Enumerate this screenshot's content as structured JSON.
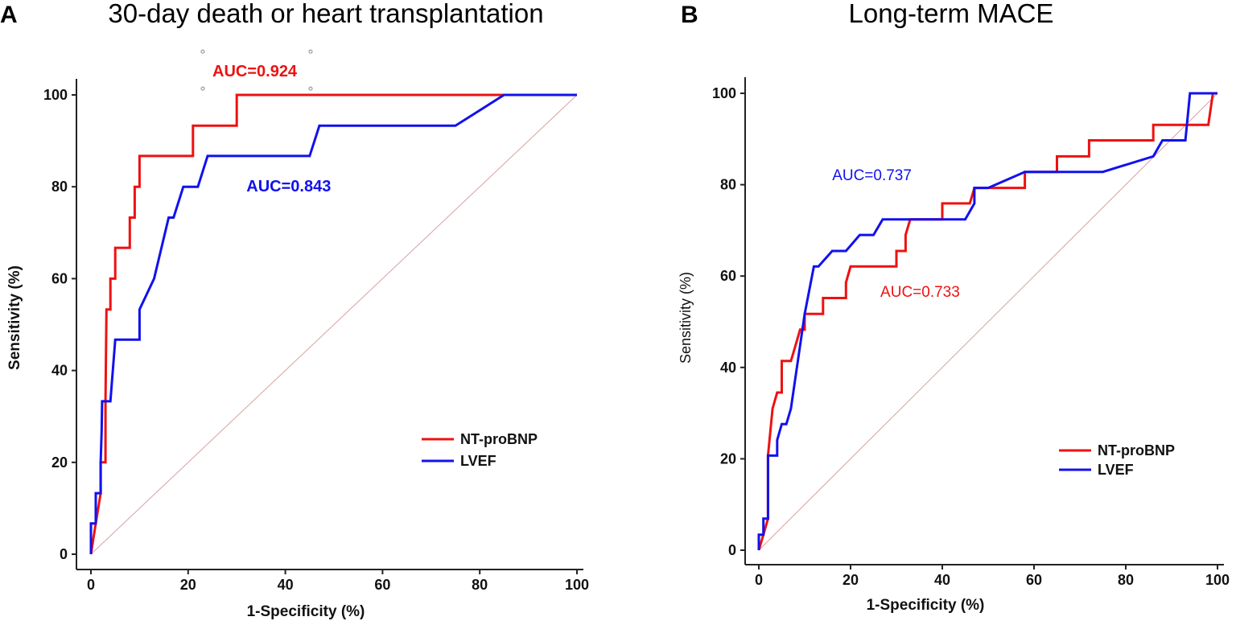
{
  "chart_data": [
    {
      "panel": "A",
      "type": "line",
      "title": "30-day death or heart transplantation",
      "xlabel": "1-Specificity (%)",
      "ylabel": "Sensitivity (%)",
      "xlim": [
        0,
        100
      ],
      "ylim": [
        0,
        100
      ],
      "xticks": [
        0,
        20,
        40,
        60,
        80,
        100
      ],
      "yticks": [
        0,
        20,
        40,
        60,
        80,
        100
      ],
      "grid": false,
      "legend": "lower-right",
      "series": [
        {
          "name": "NT-proBNP",
          "color": "#ee1111",
          "auc_label": "AUC=0.924",
          "auc_pos": [
            25,
            104
          ],
          "points": [
            [
              0,
              0
            ],
            [
              1,
              6.7
            ],
            [
              2,
              13.3
            ],
            [
              2,
              20
            ],
            [
              3,
              20
            ],
            [
              3,
              33.3
            ],
            [
              3.2,
              53.3
            ],
            [
              4,
              53.3
            ],
            [
              4,
              60
            ],
            [
              5,
              60
            ],
            [
              5,
              66.7
            ],
            [
              8,
              66.7
            ],
            [
              8,
              73.3
            ],
            [
              9,
              73.3
            ],
            [
              9,
              80
            ],
            [
              10,
              80
            ],
            [
              10,
              86.7
            ],
            [
              21,
              86.7
            ],
            [
              21,
              93.3
            ],
            [
              30,
              93.3
            ],
            [
              30,
              100
            ],
            [
              100,
              100
            ]
          ]
        },
        {
          "name": "LVEF",
          "color": "#1111ee",
          "auc_label": "AUC=0.843",
          "auc_pos": [
            32,
            79
          ],
          "points": [
            [
              0,
              0
            ],
            [
              0,
              6.7
            ],
            [
              1,
              6.7
            ],
            [
              1,
              13.3
            ],
            [
              2,
              13.3
            ],
            [
              2,
              20
            ],
            [
              2.2,
              26.7
            ],
            [
              2.3,
              33.3
            ],
            [
              4,
              33.3
            ],
            [
              4.5,
              40
            ],
            [
              5,
              46.7
            ],
            [
              10,
              46.7
            ],
            [
              10,
              53.3
            ],
            [
              13,
              60
            ],
            [
              16,
              73.3
            ],
            [
              17,
              73.3
            ],
            [
              19,
              80
            ],
            [
              22,
              80
            ],
            [
              24,
              86.7
            ],
            [
              45,
              86.7
            ],
            [
              47,
              93.3
            ],
            [
              75,
              93.3
            ],
            [
              85,
              100
            ],
            [
              100,
              100
            ]
          ]
        }
      ]
    },
    {
      "panel": "B",
      "type": "line",
      "title": "Long-term MACE",
      "xlabel": "1-Specificity (%)",
      "ylabel": "Sensitivity (%)",
      "xlim": [
        0,
        100
      ],
      "ylim": [
        0,
        100
      ],
      "xticks": [
        0,
        20,
        40,
        60,
        80,
        100
      ],
      "yticks": [
        0,
        20,
        40,
        60,
        80,
        100
      ],
      "grid": false,
      "legend": "lower-right",
      "series": [
        {
          "name": "NT-proBNP",
          "color": "#ee1111",
          "auc_label": "AUC=0.733",
          "auc_pos": [
            26.5,
            55.5
          ],
          "points": [
            [
              0,
              0
            ],
            [
              1,
              3.4
            ],
            [
              2,
              6.9
            ],
            [
              2,
              20.7
            ],
            [
              3,
              31
            ],
            [
              4,
              34.5
            ],
            [
              5,
              34.5
            ],
            [
              5,
              41.4
            ],
            [
              7,
              41.4
            ],
            [
              8,
              44.8
            ],
            [
              9,
              48.3
            ],
            [
              10,
              48.3
            ],
            [
              10,
              51.7
            ],
            [
              14,
              51.7
            ],
            [
              14,
              55.2
            ],
            [
              19,
              55.2
            ],
            [
              19,
              58.6
            ],
            [
              20,
              62.1
            ],
            [
              30,
              62.1
            ],
            [
              30,
              65.5
            ],
            [
              32,
              65.5
            ],
            [
              32,
              69
            ],
            [
              33,
              72.4
            ],
            [
              40,
              72.4
            ],
            [
              40,
              75.9
            ],
            [
              46,
              75.9
            ],
            [
              47,
              79.3
            ],
            [
              58,
              79.3
            ],
            [
              58,
              82.8
            ],
            [
              65,
              82.8
            ],
            [
              65,
              86.2
            ],
            [
              72,
              86.2
            ],
            [
              72,
              89.7
            ],
            [
              86,
              89.7
            ],
            [
              86,
              93.1
            ],
            [
              98,
              93.1
            ],
            [
              99,
              100
            ],
            [
              100,
              100
            ]
          ]
        },
        {
          "name": "LVEF",
          "color": "#1111ee",
          "auc_label": "AUC=0.737",
          "auc_pos": [
            16,
            81
          ],
          "points": [
            [
              0,
              0
            ],
            [
              0,
              3.4
            ],
            [
              1,
              3.4
            ],
            [
              1,
              6.9
            ],
            [
              2,
              6.9
            ],
            [
              2,
              20.7
            ],
            [
              4,
              20.7
            ],
            [
              4,
              24.1
            ],
            [
              5,
              27.6
            ],
            [
              6,
              27.6
            ],
            [
              7,
              31
            ],
            [
              8,
              37.9
            ],
            [
              9,
              44.8
            ],
            [
              10,
              51.7
            ],
            [
              12,
              62.1
            ],
            [
              13,
              62.1
            ],
            [
              16,
              65.5
            ],
            [
              19,
              65.5
            ],
            [
              22,
              69
            ],
            [
              25,
              69
            ],
            [
              27,
              72.4
            ],
            [
              45,
              72.4
            ],
            [
              47,
              75.9
            ],
            [
              47,
              79.3
            ],
            [
              50,
              79.3
            ],
            [
              58,
              82.8
            ],
            [
              75,
              82.8
            ],
            [
              86,
              86.2
            ],
            [
              88,
              89.7
            ],
            [
              93,
              89.7
            ],
            [
              94,
              100
            ],
            [
              100,
              100
            ]
          ]
        }
      ]
    }
  ]
}
